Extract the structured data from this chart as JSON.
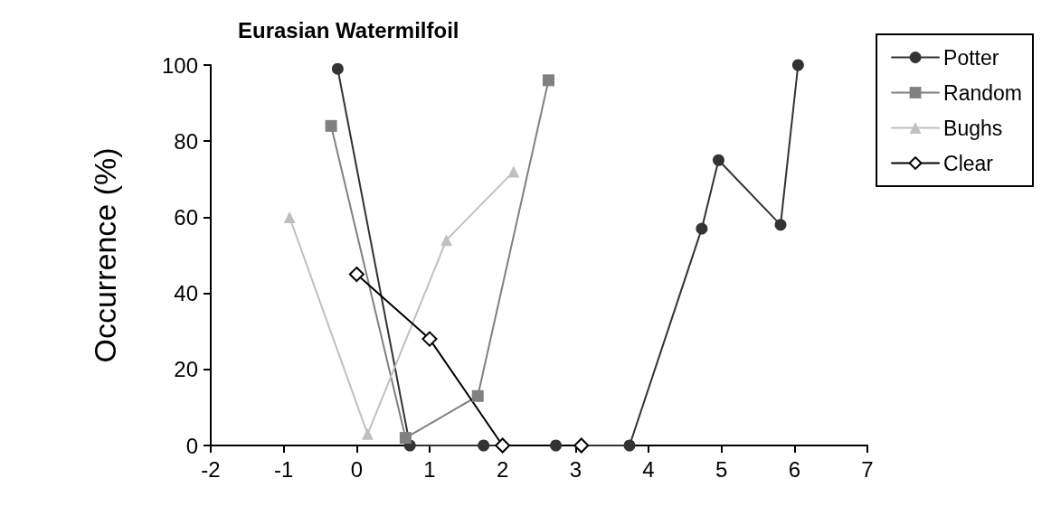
{
  "chart_data": {
    "type": "line",
    "title": "Eurasian Watermilfoil",
    "ylabel": "Occurrence (%)",
    "xlim": [
      -2,
      7
    ],
    "xticks": [
      -2,
      -1,
      0,
      1,
      2,
      3,
      4,
      5,
      6,
      7
    ],
    "ylim": [
      0,
      100
    ],
    "yticks": [
      0,
      20,
      40,
      60,
      80,
      100
    ],
    "grid": false,
    "legend": "top right",
    "line_style": "solid",
    "series": [
      {
        "name": "Potter",
        "color": "#333333",
        "marker": "circle",
        "x": [
          -0.26,
          0.73,
          1.74,
          2.73,
          3.74,
          4.73,
          4.96,
          5.81,
          6.05
        ],
        "values": [
          99,
          0,
          0,
          0,
          0,
          57,
          75,
          58,
          100
        ]
      },
      {
        "name": "Random",
        "color": "#808080",
        "marker": "square",
        "x": [
          -0.35,
          0.67,
          1.66,
          2.63
        ],
        "values": [
          84,
          2,
          13,
          96
        ]
      },
      {
        "name": "Bughs",
        "color": "#c0c0c0",
        "marker": "triangle",
        "x": [
          -0.92,
          0.15,
          1.23,
          2.15
        ],
        "values": [
          60,
          3,
          54,
          72
        ]
      },
      {
        "name": "Clear",
        "color": "#000000",
        "marker": "diamond",
        "x": [
          0,
          1,
          2,
          3.08
        ],
        "values": [
          45,
          28,
          0,
          0
        ]
      }
    ]
  }
}
